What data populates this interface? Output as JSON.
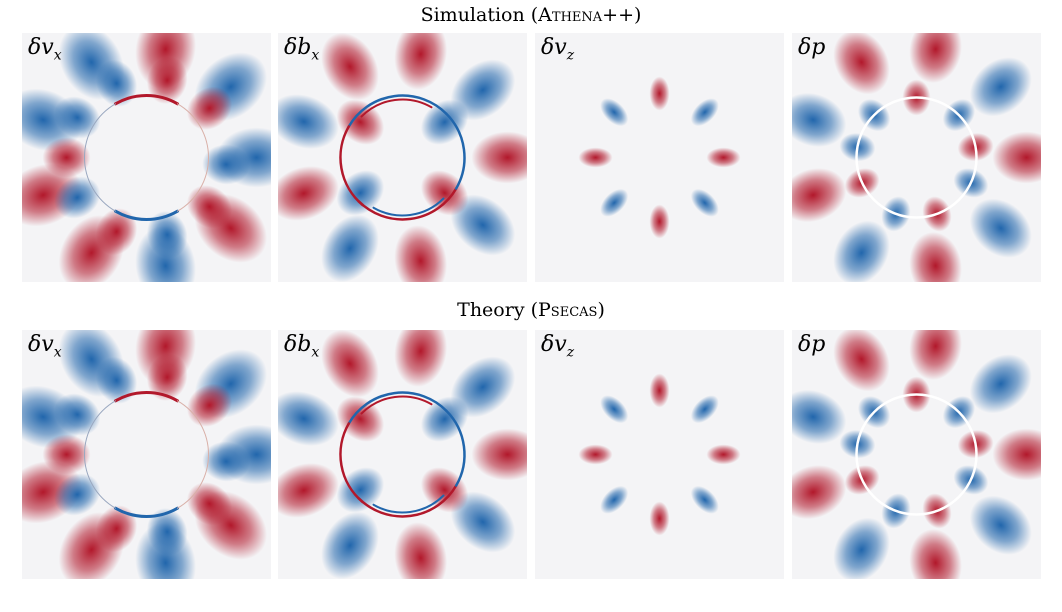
{
  "rows": [
    {
      "title_prefix": "Simulation (",
      "title_name": "Athena++",
      "title_suffix": ")",
      "panels": [
        {
          "symbol": "δv",
          "subscript": "x",
          "field": "vx"
        },
        {
          "symbol": "δb",
          "subscript": "x",
          "field": "bx"
        },
        {
          "symbol": "δv",
          "subscript": "z",
          "field": "vz"
        },
        {
          "symbol": "δp",
          "subscript": "",
          "field": "p"
        }
      ]
    },
    {
      "title_prefix": "Theory (",
      "title_name": "Psecas",
      "title_suffix": ")",
      "panels": [
        {
          "symbol": "δv",
          "subscript": "x",
          "field": "vx"
        },
        {
          "symbol": "δb",
          "subscript": "x",
          "field": "bx"
        },
        {
          "symbol": "δv",
          "subscript": "z",
          "field": "vz"
        },
        {
          "symbol": "δp",
          "subscript": "",
          "field": "p"
        }
      ]
    }
  ],
  "colors": {
    "positive": "#b2182b",
    "negative": "#2166ac",
    "background": "#f4f4f6"
  }
}
